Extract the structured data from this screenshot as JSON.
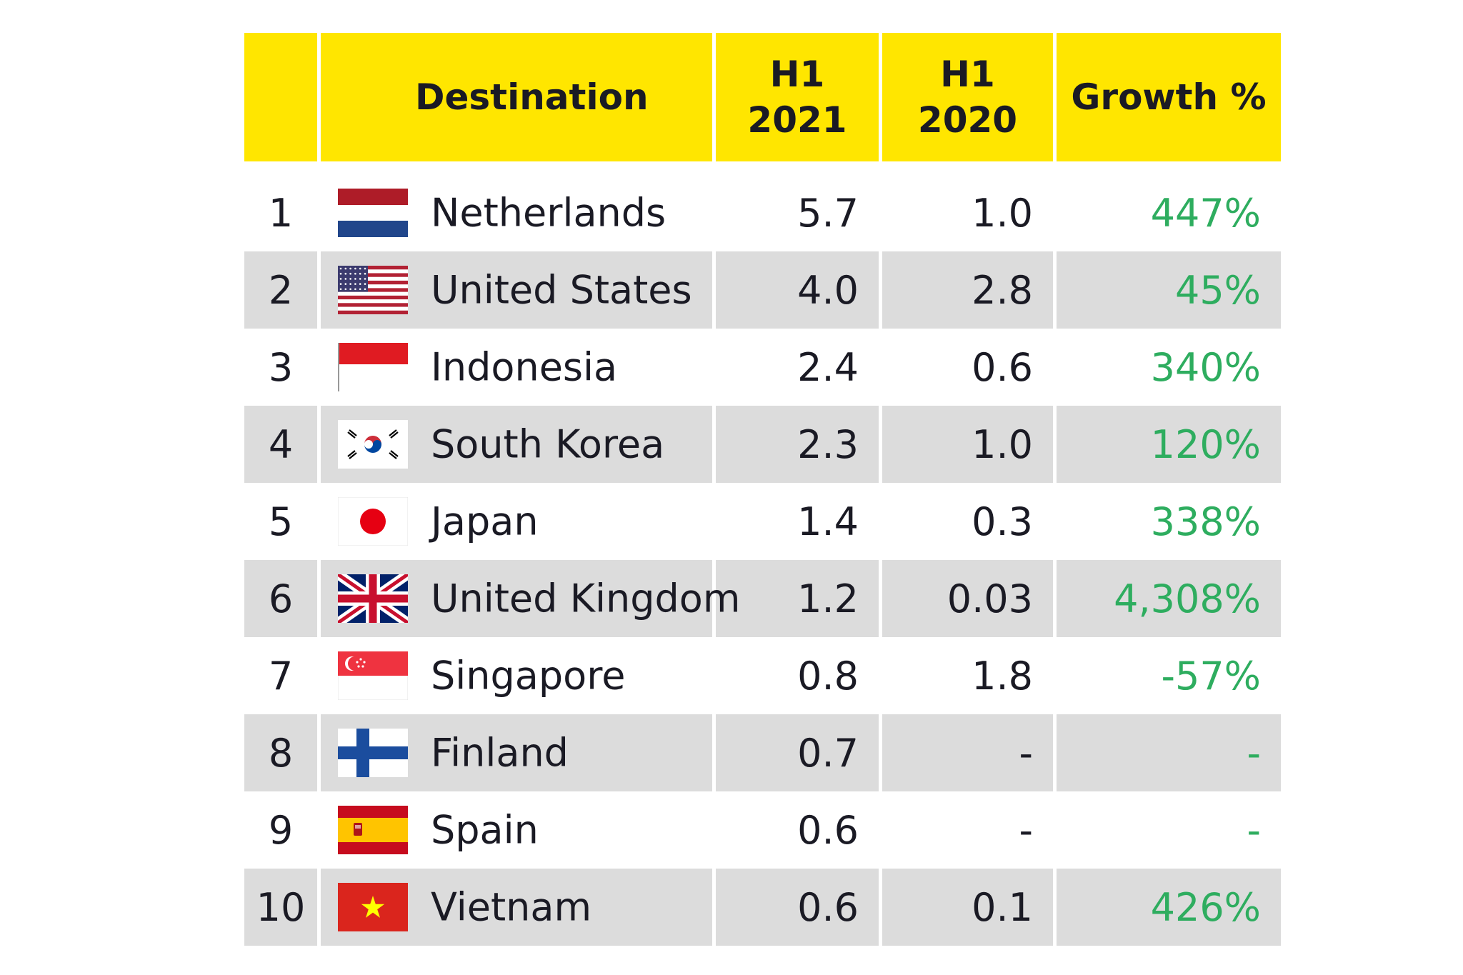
{
  "chart_data": {
    "type": "table",
    "columns": [
      "",
      "Destination",
      "H1 2021",
      "H1 2020",
      "Growth %"
    ],
    "header": {
      "rank": "",
      "destination": "Destination",
      "h1_2021": [
        "H1",
        "2021"
      ],
      "h1_2020": [
        "H1",
        "2020"
      ],
      "growth": "Growth %"
    },
    "rows": [
      {
        "rank": "1",
        "flag": "netherlands-flag",
        "destination": "Netherlands",
        "h1_2021": "5.7",
        "h1_2020": "1.0",
        "growth": "447%",
        "shaded": false
      },
      {
        "rank": "2",
        "flag": "united-states-flag",
        "destination": "United States",
        "h1_2021": "4.0",
        "h1_2020": "2.8",
        "growth": "45%",
        "shaded": true
      },
      {
        "rank": "3",
        "flag": "indonesia-flag",
        "destination": "Indonesia",
        "h1_2021": "2.4",
        "h1_2020": "0.6",
        "growth": "340%",
        "shaded": false
      },
      {
        "rank": "4",
        "flag": "south-korea-flag",
        "destination": "South Korea",
        "h1_2021": "2.3",
        "h1_2020": "1.0",
        "growth": "120%",
        "shaded": true
      },
      {
        "rank": "5",
        "flag": "japan-flag",
        "destination": "Japan",
        "h1_2021": "1.4",
        "h1_2020": "0.3",
        "growth": "338%",
        "shaded": false
      },
      {
        "rank": "6",
        "flag": "united-kingdom-flag",
        "destination": "United Kingdom",
        "h1_2021": "1.2",
        "h1_2020": "0.03",
        "growth": "4,308%",
        "shaded": true
      },
      {
        "rank": "7",
        "flag": "singapore-flag",
        "destination": "Singapore",
        "h1_2021": "0.8",
        "h1_2020": "1.8",
        "growth": "-57%",
        "shaded": false
      },
      {
        "rank": "8",
        "flag": "finland-flag",
        "destination": "Finland",
        "h1_2021": "0.7",
        "h1_2020": "-",
        "growth": "-",
        "shaded": true
      },
      {
        "rank": "9",
        "flag": "spain-flag",
        "destination": "Spain",
        "h1_2021": "0.6",
        "h1_2020": "-",
        "growth": "-",
        "shaded": false
      },
      {
        "rank": "10",
        "flag": "vietnam-flag",
        "destination": "Vietnam",
        "h1_2021": "0.6",
        "h1_2020": "0.1",
        "growth": "426%",
        "shaded": true
      }
    ]
  },
  "colors": {
    "header_bg": "#ffe600",
    "shaded_row": "#dcdcdc",
    "growth_text": "#2ead5f",
    "text": "#1a1a24"
  }
}
